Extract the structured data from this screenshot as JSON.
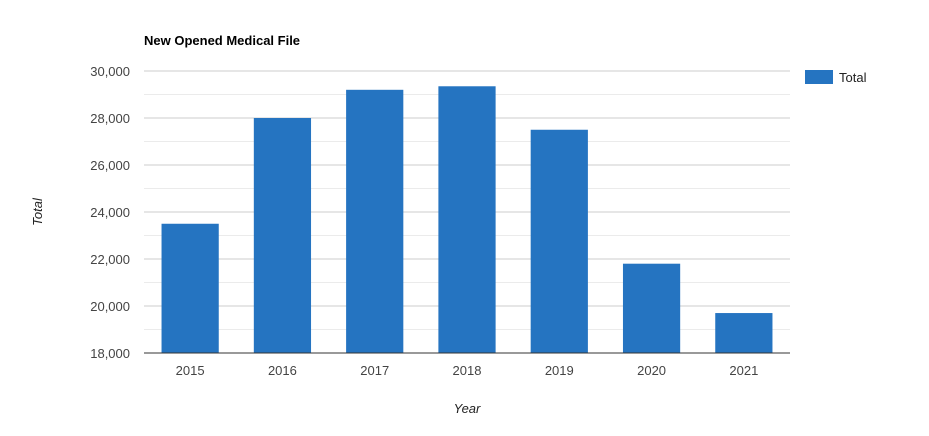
{
  "chart_data": {
    "type": "bar",
    "title": "New Opened Medical File",
    "xlabel": "Year",
    "ylabel": "Total",
    "categories": [
      "2015",
      "2016",
      "2017",
      "2018",
      "2019",
      "2020",
      "2021"
    ],
    "series": [
      {
        "name": "Total",
        "values": [
          23500,
          28000,
          29200,
          29350,
          27500,
          21800,
          19700
        ],
        "color": "#2574C1"
      }
    ],
    "ylim": [
      18000,
      30000
    ],
    "yticks": [
      "18,000",
      "20,000",
      "22,000",
      "24,000",
      "26,000",
      "28,000",
      "30,000"
    ],
    "ytick_values": [
      18000,
      20000,
      22000,
      24000,
      26000,
      28000,
      30000
    ],
    "grid": true,
    "legend_position": "right"
  }
}
